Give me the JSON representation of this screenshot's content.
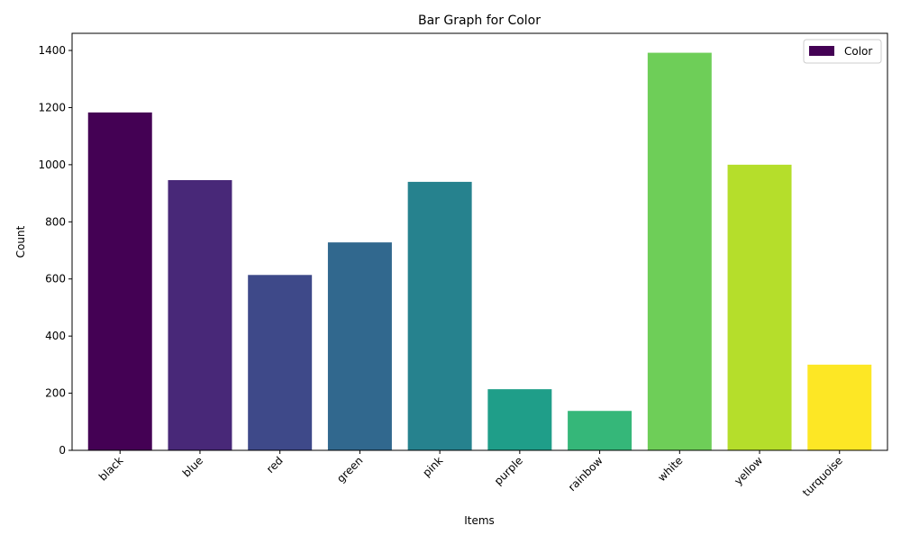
{
  "chart_data": {
    "type": "bar",
    "title": "Bar Graph for Color",
    "xlabel": "Items",
    "ylabel": "Count",
    "categories": [
      "black",
      "blue",
      "red",
      "green",
      "pink",
      "purple",
      "rainbow",
      "white",
      "yellow",
      "turquoise"
    ],
    "series": [
      {
        "name": "Color",
        "values": [
          1183,
          946,
          614,
          728,
          940,
          214,
          138,
          1392,
          1000,
          300
        ],
        "colors": [
          "#440154",
          "#482878",
          "#3e4989",
          "#31688e",
          "#26828e",
          "#1f9e89",
          "#35b779",
          "#6ece58",
          "#b5de2b",
          "#fde725"
        ]
      }
    ],
    "ylim": [
      0,
      1460
    ],
    "yticks": [
      0,
      200,
      400,
      600,
      800,
      1000,
      1200,
      1400
    ],
    "grid": false,
    "legend_position": "top-right"
  }
}
